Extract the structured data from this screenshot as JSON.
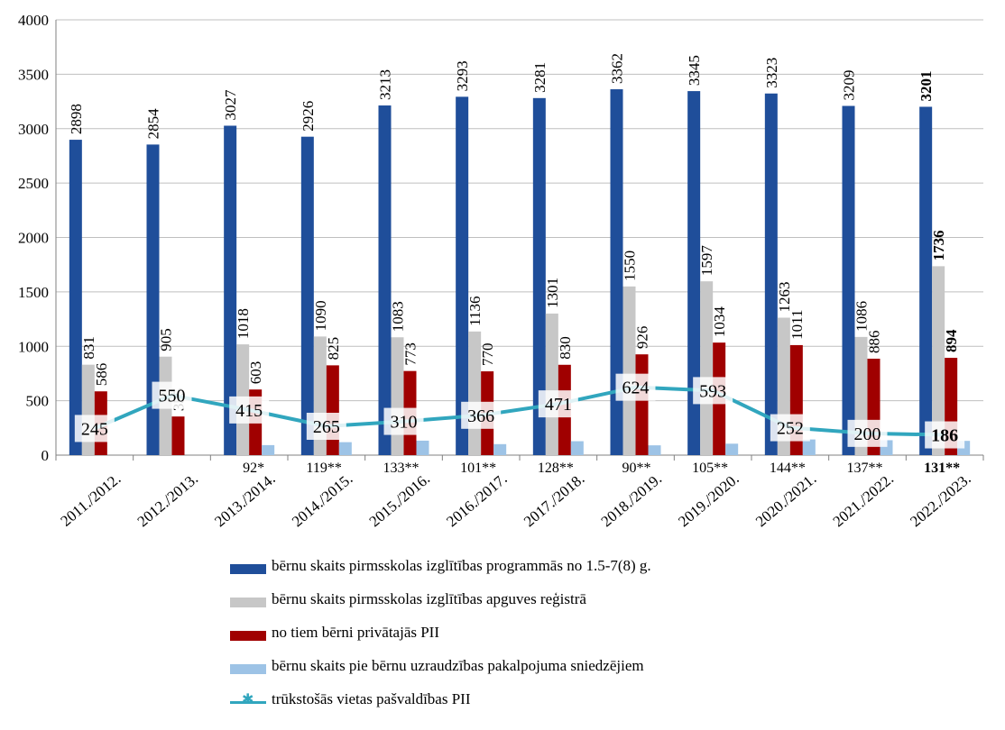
{
  "colors": {
    "series1": "#1F4E9A",
    "series2": "#C7C7C7",
    "series3": "#A00000",
    "series4": "#9DC3E6",
    "line": "#31A6BE"
  },
  "chart_data": {
    "type": "bar",
    "title": "",
    "xlabel": "",
    "ylabel": "",
    "ylim": [
      0,
      4000
    ],
    "yticks": [
      "0",
      "500",
      "1000",
      "1500",
      "2000",
      "2500",
      "3000",
      "3500",
      "4000"
    ],
    "grid": true,
    "legend_position": "bottom",
    "categories": [
      "2011./2012.",
      "2012./2013.",
      "2013./2014.",
      "2014./2015.",
      "2015./2016.",
      "2016./2017.",
      "2017./2018.",
      "2018./2019.",
      "2019./2020.",
      "2020./2021.",
      "2021./2022.",
      "2022./2023."
    ],
    "series": [
      {
        "name": "bērnu skaits pirmsskolas izglītības programmās no 1.5-7(8) g.",
        "type": "bar",
        "values": [
          2898,
          2854,
          3027,
          2926,
          3213,
          3293,
          3281,
          3362,
          3345,
          3323,
          3209,
          3201
        ],
        "labels": [
          "2898",
          "2854",
          "3027",
          "2926",
          "3213",
          "3293",
          "3281",
          "3362",
          "3345",
          "3323",
          "3209",
          "3201"
        ]
      },
      {
        "name": "bērnu skaits pirmsskolas izglītības apguves reģistrā",
        "type": "bar",
        "values": [
          831,
          905,
          1018,
          1090,
          1083,
          1136,
          1301,
          1550,
          1597,
          1263,
          1086,
          1736
        ],
        "labels": [
          "831",
          "905",
          "1018",
          "1090",
          "1083",
          "1136",
          "1301",
          "1550",
          "1597",
          "1263",
          "1086",
          "1736"
        ]
      },
      {
        "name": "no tiem bērni privātajās PII",
        "type": "bar",
        "values": [
          586,
          355,
          603,
          825,
          773,
          770,
          830,
          926,
          1034,
          1011,
          886,
          894
        ],
        "labels": [
          "586",
          "355",
          "603",
          "825",
          "773",
          "770",
          "830",
          "926",
          "1034",
          "1011",
          "886",
          "894"
        ]
      },
      {
        "name": "bērnu skaits pie bērnu uzraudzības pakalpojuma sniedzējiem",
        "type": "bar",
        "values": [
          null,
          null,
          92,
          119,
          133,
          101,
          128,
          90,
          105,
          144,
          137,
          131
        ],
        "labels": [
          "",
          "",
          "92*",
          "119**",
          "133**",
          "101**",
          "128**",
          "90**",
          "105**",
          "144**",
          "137**",
          "131**"
        ]
      },
      {
        "name": "trūkstošās vietas pašvaldības PII",
        "type": "line",
        "values": [
          245,
          550,
          415,
          265,
          310,
          366,
          471,
          624,
          593,
          252,
          200,
          186
        ],
        "labels": [
          "245",
          "550",
          "415",
          "265",
          "310",
          "366",
          "471",
          "624",
          "593",
          "252",
          "200",
          "186"
        ]
      }
    ]
  }
}
